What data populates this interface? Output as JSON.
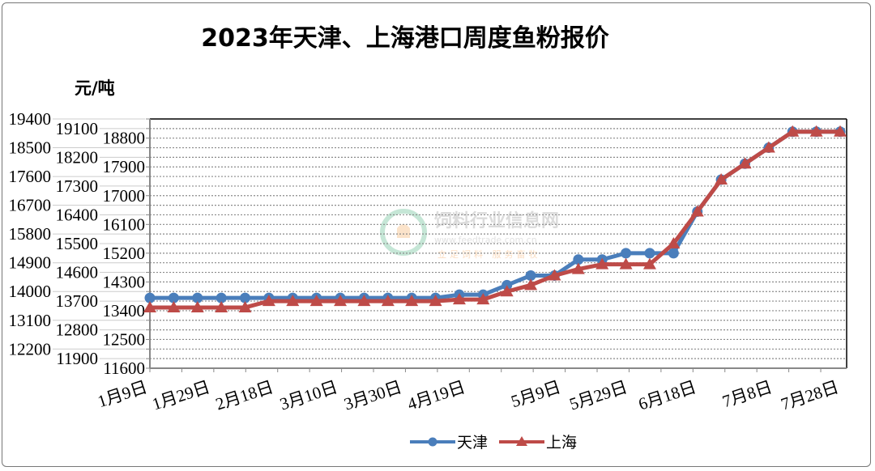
{
  "chart_data": {
    "type": "line",
    "title": "2023年天津、上海港口周度鱼粉报价",
    "ylabel": "元/吨",
    "xlabel": "",
    "ylim": [
      11600,
      19400
    ],
    "ytick_step": 300,
    "grid": "horizontal dotted",
    "legend_position": "bottom",
    "x_tick_labels": [
      "1月9日",
      "1月29日",
      "2月18日",
      "3月10日",
      "3月30日",
      "4月19日",
      "5月9日",
      "5月29日",
      "6月18日",
      "7月8日",
      "7月28日"
    ],
    "x": [
      "1/9",
      "1/16",
      "1/23",
      "1/30",
      "2/6",
      "2/13",
      "2/20",
      "2/27",
      "3/6",
      "3/13",
      "3/20",
      "3/27",
      "4/3",
      "4/10",
      "4/17",
      "4/24",
      "5/1",
      "5/8",
      "5/15",
      "5/22",
      "5/29",
      "6/5",
      "6/12",
      "6/19",
      "6/26",
      "7/3",
      "7/10",
      "7/17",
      "7/24",
      "7/31"
    ],
    "series": [
      {
        "name": "天津",
        "color": "#4a7ebb",
        "marker": "circle",
        "values": [
          13800,
          13800,
          13800,
          13800,
          13800,
          13800,
          13800,
          13800,
          13800,
          13800,
          13800,
          13800,
          13800,
          13900,
          13900,
          14200,
          14500,
          14500,
          15000,
          15000,
          15200,
          15200,
          15200,
          16500,
          17500,
          18000,
          18500,
          19000,
          19000,
          19000
        ]
      },
      {
        "name": "上海",
        "color": "#be4b48",
        "marker": "triangle",
        "values": [
          13500,
          13500,
          13500,
          13500,
          13500,
          13700,
          13700,
          13700,
          13700,
          13700,
          13700,
          13700,
          13700,
          13750,
          13750,
          14000,
          14200,
          14500,
          14700,
          14850,
          14850,
          14850,
          15500,
          16500,
          17500,
          18000,
          18500,
          19000,
          19000,
          19000
        ]
      }
    ]
  },
  "watermark": {
    "name": "饲料行业信息网",
    "url": "www.feedtrade.com.cn",
    "slogan": "立足饲料 服务畜牧"
  }
}
